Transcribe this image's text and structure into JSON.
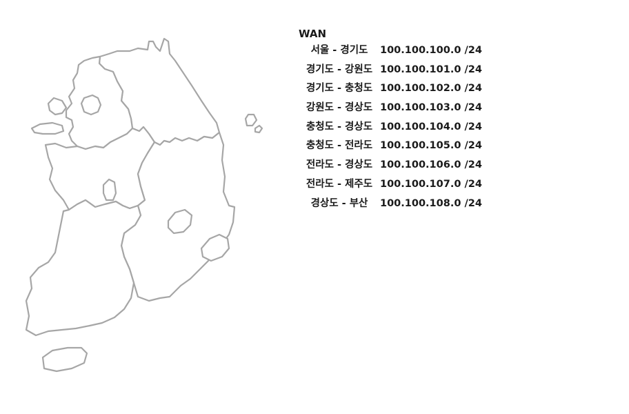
{
  "map": {
    "colors": {
      "outline": "#a6a6a6",
      "fill": "#ffffff"
    }
  },
  "wan": {
    "title": "WAN",
    "routes": [
      {
        "link": "서울 - 경기도",
        "subnet": "100.100.100.0 /24"
      },
      {
        "link": "경기도 - 강원도",
        "subnet": "100.100.101.0 /24"
      },
      {
        "link": "경기도 - 충청도",
        "subnet": "100.100.102.0 /24"
      },
      {
        "link": "강원도 - 경상도",
        "subnet": "100.100.103.0 /24"
      },
      {
        "link": "충청도 - 경상도",
        "subnet": "100.100.104.0 /24"
      },
      {
        "link": "충청도 - 전라도",
        "subnet": "100.100.105.0 /24"
      },
      {
        "link": "전라도 - 경상도",
        "subnet": "100.100.106.0 /24"
      },
      {
        "link": "전라도 - 제주도",
        "subnet": "100.100.107.0 /24"
      },
      {
        "link": "경상도 - 부산",
        "subnet": "100.100.108.0 /24"
      }
    ]
  }
}
